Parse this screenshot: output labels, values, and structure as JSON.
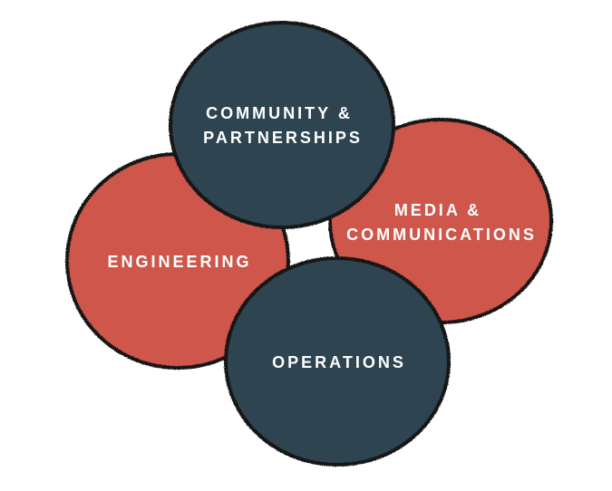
{
  "colors": {
    "dark": "#2d4451",
    "red": "#cf574b",
    "outline": "#161616",
    "text": "#ffffff"
  },
  "circles": [
    {
      "id": "engineering",
      "lines": [
        "ENGINEERING"
      ],
      "color": "red"
    },
    {
      "id": "media",
      "lines": [
        "MEDIA &",
        "COMMUNICATIONS"
      ],
      "color": "red"
    },
    {
      "id": "community",
      "lines": [
        "COMMUNITY &",
        "PARTNERSHIPS"
      ],
      "color": "dark"
    },
    {
      "id": "operations",
      "lines": [
        "OPERATIONS"
      ],
      "color": "dark"
    }
  ]
}
